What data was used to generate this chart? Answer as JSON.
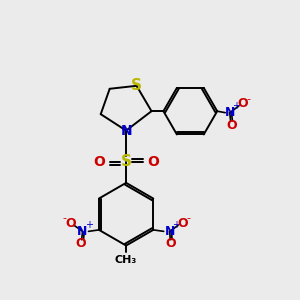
{
  "background_color": "#ebebeb",
  "atom_colors": {
    "S": "#b8b800",
    "N": "#0000cc",
    "O": "#cc0000",
    "C": "#000000"
  },
  "bond_color": "#000000",
  "figsize": [
    3.0,
    3.0
  ],
  "dpi": 100
}
